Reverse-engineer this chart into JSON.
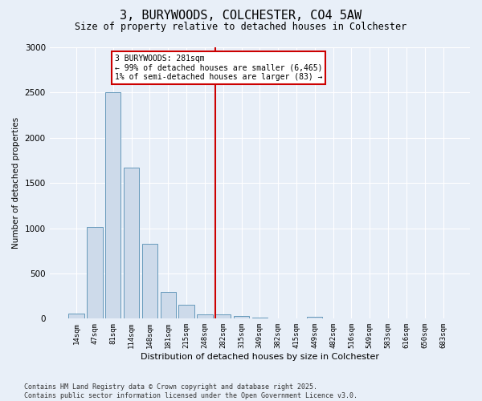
{
  "title": "3, BURYWOODS, COLCHESTER, CO4 5AW",
  "subtitle": "Size of property relative to detached houses in Colchester",
  "xlabel": "Distribution of detached houses by size in Colchester",
  "ylabel": "Number of detached properties",
  "footer_line1": "Contains HM Land Registry data © Crown copyright and database right 2025.",
  "footer_line2": "Contains public sector information licensed under the Open Government Licence v3.0.",
  "bar_color": "#cddaea",
  "bar_edge_color": "#6699bb",
  "background_color": "#e8eff8",
  "grid_color": "#ffffff",
  "categories": [
    "14sqm",
    "47sqm",
    "81sqm",
    "114sqm",
    "148sqm",
    "181sqm",
    "215sqm",
    "248sqm",
    "282sqm",
    "315sqm",
    "349sqm",
    "382sqm",
    "415sqm",
    "449sqm",
    "482sqm",
    "516sqm",
    "549sqm",
    "583sqm",
    "616sqm",
    "650sqm",
    "683sqm"
  ],
  "values": [
    55,
    1010,
    2500,
    1670,
    830,
    300,
    155,
    50,
    50,
    30,
    10,
    5,
    0,
    20,
    5,
    0,
    0,
    0,
    0,
    0,
    0
  ],
  "ylim": [
    0,
    3000
  ],
  "yticks": [
    0,
    500,
    1000,
    1500,
    2000,
    2500,
    3000
  ],
  "marker_bar_index": 8,
  "marker_label": "3 BURYWOODS: 281sqm",
  "marker_line1": "← 99% of detached houses are smaller (6,465)",
  "marker_line2": "1% of semi-detached houses are larger (83) →",
  "marker_color": "#cc0000",
  "figsize": [
    6.0,
    5.0
  ],
  "dpi": 100
}
